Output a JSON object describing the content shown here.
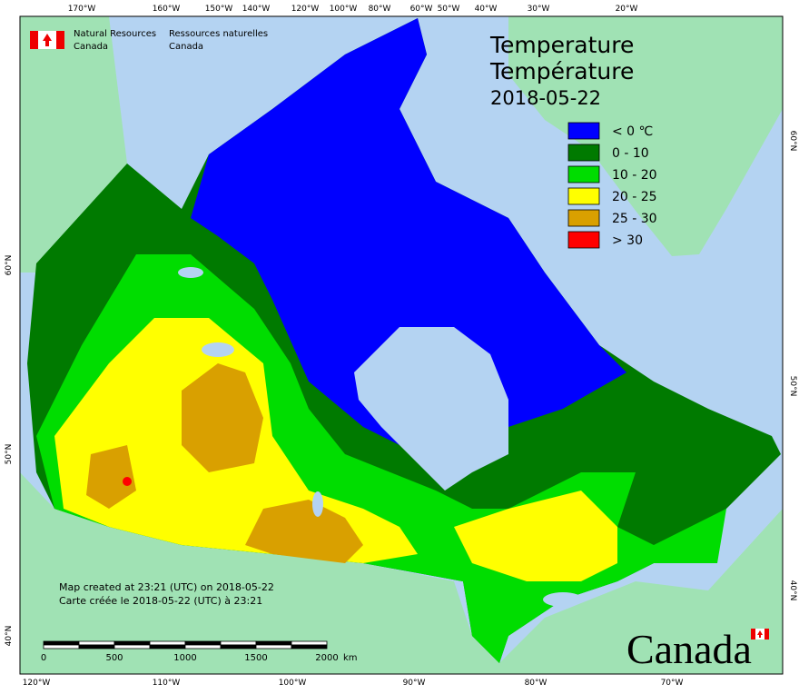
{
  "header": {
    "agency_en": "Natural Resources",
    "country_en": "Canada",
    "agency_fr": "Ressources naturelles",
    "country_fr": "Canada"
  },
  "title": {
    "en": "Temperature",
    "fr": "Température",
    "date": "2018-05-22"
  },
  "legend": [
    {
      "label": "< 0 ℃",
      "color": "#0000ff"
    },
    {
      "label": "0 - 10",
      "color": "#007a00"
    },
    {
      "label": "10 - 20",
      "color": "#00dd00"
    },
    {
      "label": "20 - 25",
      "color": "#ffff00"
    },
    {
      "label": "25 - 30",
      "color": "#d9a000"
    },
    {
      "label": "> 30",
      "color": "#ff0000"
    }
  ],
  "note": [
    "Map created at 23:21 (UTC) on 2018-05-22",
    "Carte créée le 2018-05-22 (UTC) à 23:21"
  ],
  "scale": {
    "ticks": [
      "0",
      "500",
      "1000",
      "1500",
      "2000"
    ],
    "unit": "km"
  },
  "top_axis": [
    "170°W",
    "160°W",
    "150°W",
    "140°W",
    "120°W",
    "100°W",
    "80°W",
    "60°W",
    "50°W",
    "40°W",
    "30°W",
    "20°W"
  ],
  "bottom_axis": [
    "120°W",
    "110°W",
    "100°W",
    "90°W",
    "80°W",
    "70°W"
  ],
  "left_axis": [
    "60°N",
    "50°N",
    "40°N"
  ],
  "right_axis": [
    "60°N",
    "50°N",
    "40°N"
  ],
  "wordmark": "Canada"
}
